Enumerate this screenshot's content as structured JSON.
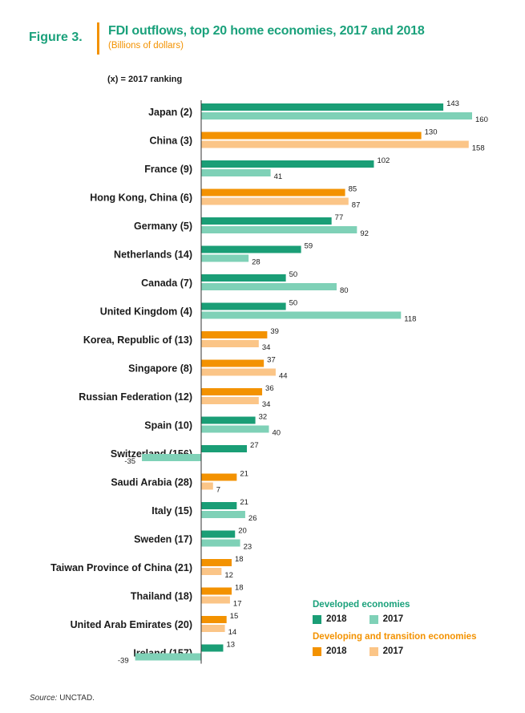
{
  "header": {
    "figure_label": "Figure 3.",
    "title": "FDI outflows, top 20 home economies, 2017 and 2018",
    "subtitle": "(Billions of dollars)",
    "ranking_note": "(x) = 2017 ranking"
  },
  "source": {
    "prefix": "Source:",
    "text": "UNCTAD."
  },
  "colors": {
    "dev_2018": "#1a9e76",
    "dev_2017": "#7fd1b7",
    "dvg_2018": "#f39200",
    "dvg_2017": "#fbc587",
    "axis": "#333333"
  },
  "legend": {
    "developed_title": "Developed economies",
    "developing_title": "Developing and  transition economies",
    "label_2018": "2018",
    "label_2017": "2017"
  },
  "chart_data": {
    "type": "bar",
    "orientation": "horizontal",
    "title": "FDI outflows, top 20 home economies, 2017 and 2018",
    "unit": "Billions of dollars",
    "series_names": [
      "2018",
      "2017"
    ],
    "categories": [
      {
        "label": "Japan (2)",
        "group": "developed",
        "v2018": 143,
        "v2017": 160
      },
      {
        "label": "China (3)",
        "group": "developing",
        "v2018": 130,
        "v2017": 158
      },
      {
        "label": "France (9)",
        "group": "developed",
        "v2018": 102,
        "v2017": 41
      },
      {
        "label": "Hong Kong, China (6)",
        "group": "developing",
        "v2018": 85,
        "v2017": 87
      },
      {
        "label": "Germany (5)",
        "group": "developed",
        "v2018": 77,
        "v2017": 92
      },
      {
        "label": "Netherlands (14)",
        "group": "developed",
        "v2018": 59,
        "v2017": 28
      },
      {
        "label": "Canada (7)",
        "group": "developed",
        "v2018": 50,
        "v2017": 80
      },
      {
        "label": "United Kingdom (4)",
        "group": "developed",
        "v2018": 50,
        "v2017": 118
      },
      {
        "label": "Korea, Republic of (13)",
        "group": "developing",
        "v2018": 39,
        "v2017": 34
      },
      {
        "label": "Singapore (8)",
        "group": "developing",
        "v2018": 37,
        "v2017": 44
      },
      {
        "label": "Russian Federation (12)",
        "group": "developing",
        "v2018": 36,
        "v2017": 34
      },
      {
        "label": "Spain (10)",
        "group": "developed",
        "v2018": 32,
        "v2017": 40
      },
      {
        "label": "Switzerland (156)",
        "group": "developed",
        "v2018": 27,
        "v2017": -35
      },
      {
        "label": "Saudi Arabia (28)",
        "group": "developing",
        "v2018": 21,
        "v2017": 7
      },
      {
        "label": "Italy (15)",
        "group": "developed",
        "v2018": 21,
        "v2017": 26
      },
      {
        "label": "Sweden (17)",
        "group": "developed",
        "v2018": 20,
        "v2017": 23
      },
      {
        "label": "Taiwan Province of China (21)",
        "group": "developing",
        "v2018": 18,
        "v2017": 12
      },
      {
        "label": "Thailand (18)",
        "group": "developing",
        "v2018": 18,
        "v2017": 17
      },
      {
        "label": "United Arab Emirates (20)",
        "group": "developing",
        "v2018": 15,
        "v2017": 14
      },
      {
        "label": "Ireland (157)",
        "group": "developed",
        "v2018": 13,
        "v2017": -39
      }
    ],
    "xlim": [
      -39,
      160
    ],
    "grid": false,
    "legend_position": "bottom-right"
  }
}
